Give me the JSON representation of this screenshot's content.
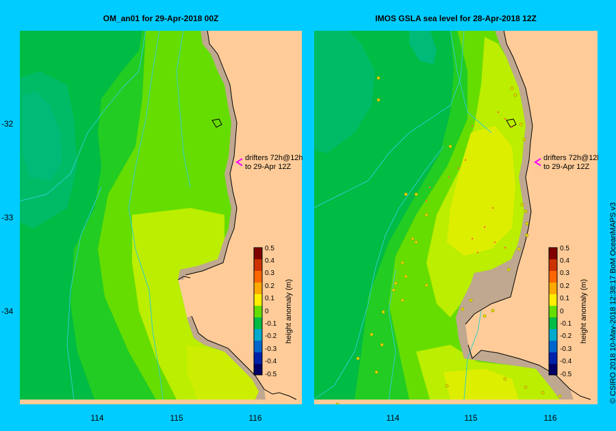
{
  "panels": [
    {
      "title": "OM_an01  for 29-Apr-2018 00Z"
    },
    {
      "title": "IMOS GSLA sea level  for 28-Apr-2018 12Z"
    }
  ],
  "annotation": {
    "line1": "drifters 72h@12h",
    "line2": "to 29-Apr 12Z",
    "color": "#ff00ff"
  },
  "colorbar": {
    "label": "height anomaly (m)",
    "ticks": [
      "0.5",
      "0.4",
      "0.3",
      "0.2",
      "0.1",
      "0",
      "-0.1",
      "-0.2",
      "-0.3",
      "-0.4",
      "-0.5"
    ]
  },
  "axes": {
    "y_ticks": [
      "-32",
      "-33",
      "-34"
    ],
    "x_ticks": [
      "114",
      "115",
      "116"
    ]
  },
  "copyright": "© CSIRO 2018   10-May-2018 12:38:17 BoM OceanMAPS v3",
  "colors": {
    "land": "#ffcc99",
    "shelf": "#c0a890",
    "coast": "#000000",
    "contour": "#33cccc",
    "frame": "#00ccff"
  }
}
